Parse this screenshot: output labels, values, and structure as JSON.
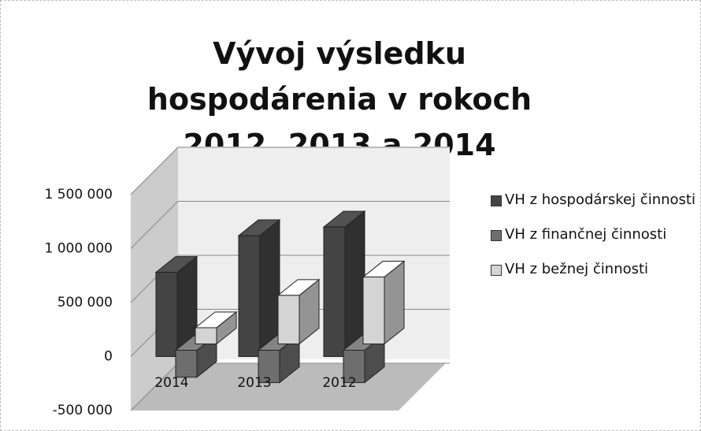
{
  "chart_data": {
    "type": "bar3d",
    "title": "Vývoj výsledku hospodárenia v rokoch 2012, 2013 a 2014",
    "categories": [
      "2014",
      "2013",
      "2012"
    ],
    "series": [
      {
        "name": "VH z hospodárskej činnosti",
        "color": "#444444",
        "values": [
          780000,
          1120000,
          1200000
        ]
      },
      {
        "name": "VH z finančnej činnosti",
        "color": "#6e6e6e",
        "values": [
          -250000,
          -300000,
          -300000
        ]
      },
      {
        "name": "VH z bežnej činnosti",
        "color": "#d4d4d4",
        "values": [
          150000,
          450000,
          620000
        ]
      }
    ],
    "ylim": [
      -500000,
      1500000
    ],
    "yticks": [
      {
        "value": -500000,
        "label": "-500 000"
      },
      0,
      {
        "value": 500000,
        "label": "500 000"
      },
      {
        "value": 1000000,
        "label": "1 000 000"
      },
      {
        "value": 1500000,
        "label": "1 500 000"
      }
    ],
    "grid": true,
    "legend": "right"
  }
}
